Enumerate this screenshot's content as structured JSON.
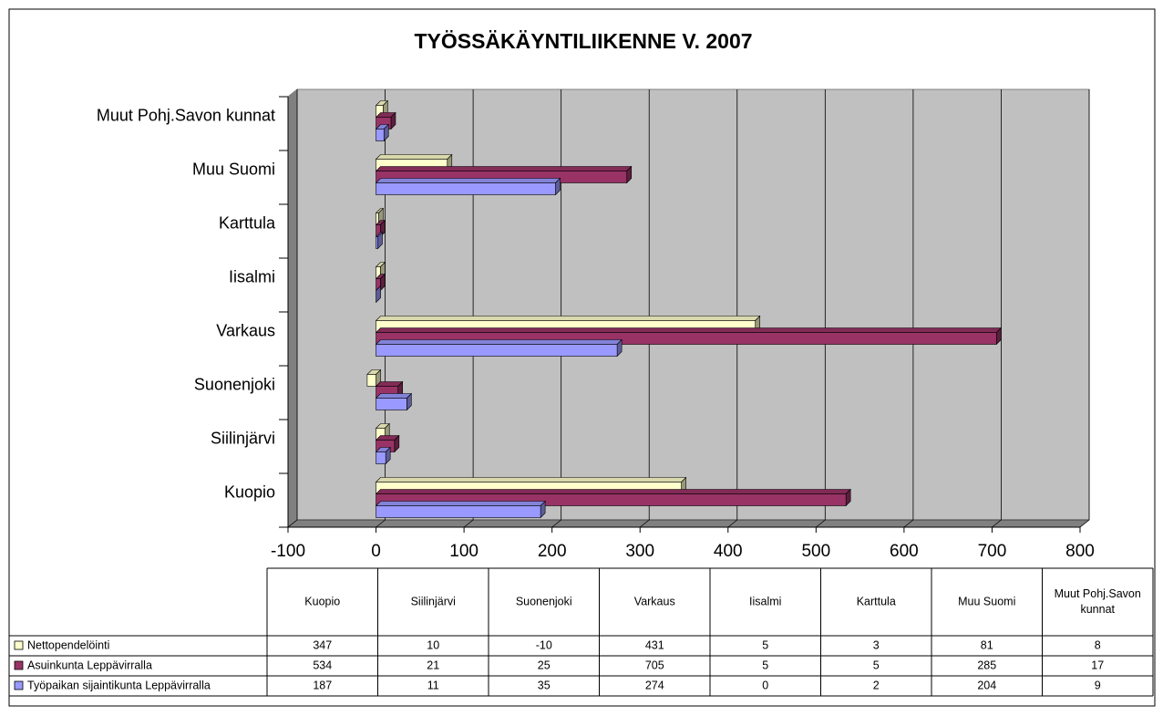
{
  "chart_data": {
    "type": "bar",
    "orientation": "horizontal",
    "title": "TYÖSSÄKÄYNTILIIKENNE V. 2007",
    "categories": [
      "Kuopio",
      "Siilinjärvi",
      "Suonenjoki",
      "Varkaus",
      "Iisalmi",
      "Karttula",
      "Muu Suomi",
      "Muut Pohj.Savon kunnat"
    ],
    "series": [
      {
        "name": "Nettopendelöinti",
        "color": "#ffffcc",
        "values": [
          347,
          10,
          -10,
          431,
          5,
          3,
          81,
          8
        ]
      },
      {
        "name": "Asuinkunta Leppävirralla",
        "color": "#993366",
        "values": [
          534,
          21,
          25,
          705,
          5,
          5,
          285,
          17
        ]
      },
      {
        "name": "Työpaikan sijaintikunta Leppävirralla",
        "color": "#9999ff",
        "values": [
          187,
          11,
          35,
          274,
          0,
          2,
          204,
          9
        ]
      }
    ],
    "xlim": [
      -100,
      800
    ],
    "xticks": [
      -100,
      0,
      100,
      200,
      300,
      400,
      500,
      600,
      700,
      800
    ],
    "grid": true
  }
}
